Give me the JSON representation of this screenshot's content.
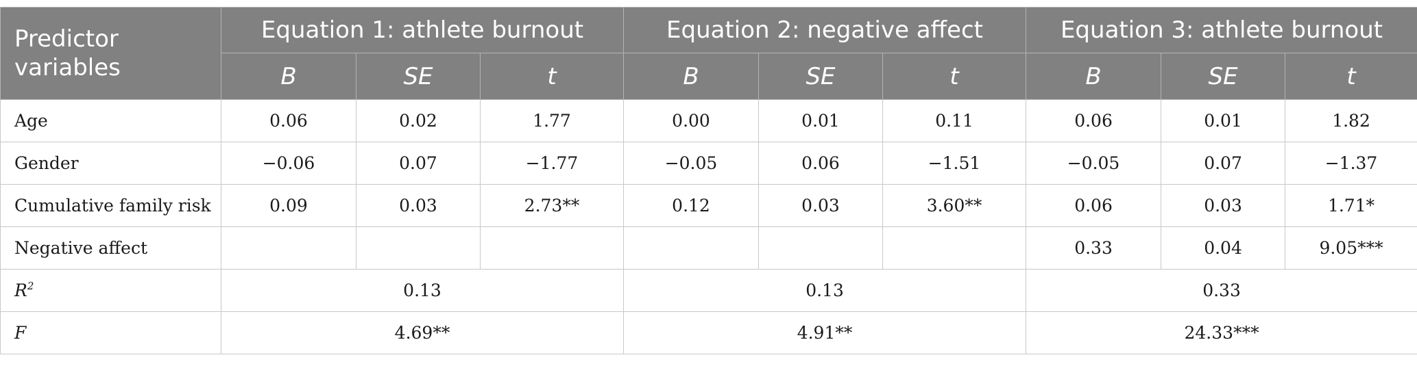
{
  "header": {
    "predictor_label": "Predictor variables",
    "equations": [
      "Equation 1: athlete burnout",
      "Equation 2: negative affect",
      "Equation 3: athlete burnout"
    ],
    "sub": [
      "B",
      "SE",
      "t"
    ]
  },
  "rows": [
    {
      "label": "Age",
      "cells": [
        "0.06",
        "0.02",
        "1.77",
        "0.00",
        "0.01",
        "0.11",
        "0.06",
        "0.01",
        "1.82"
      ]
    },
    {
      "label": "Gender",
      "cells": [
        "−0.06",
        "0.07",
        "−1.77",
        "−0.05",
        "0.06",
        "−1.51",
        "−0.05",
        "0.07",
        "−1.37"
      ]
    },
    {
      "label": "Cumulative family risk",
      "cells": [
        "0.09",
        "0.03",
        "2.73**",
        "0.12",
        "0.03",
        "3.60**",
        "0.06",
        "0.03",
        "1.71*"
      ]
    },
    {
      "label": "Negative affect",
      "cells": [
        "",
        "",
        "",
        "",
        "",
        "",
        "0.33",
        "0.04",
        "9.05***"
      ]
    }
  ],
  "summary": [
    {
      "label": "R",
      "sup": "2",
      "values": [
        "0.13",
        "0.13",
        "0.33"
      ]
    },
    {
      "label": "F",
      "sup": "",
      "values": [
        "4.69**",
        "4.91**",
        "24.33***"
      ]
    }
  ]
}
